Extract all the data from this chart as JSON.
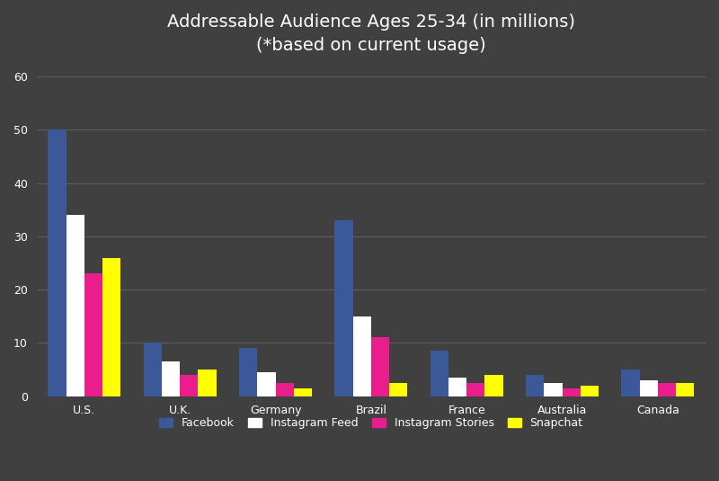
{
  "title_line1": "Addressable Audience Ages 25-34 (in millions)",
  "title_line2": "(*based on current usage)",
  "categories": [
    "U.S.",
    "U.K.",
    "Germany",
    "Brazil",
    "France",
    "Australia",
    "Canada"
  ],
  "series": {
    "Facebook": [
      50,
      10,
      9,
      33,
      8.5,
      4,
      5
    ],
    "Instagram Feed": [
      34,
      6.5,
      4.5,
      15,
      3.5,
      2.5,
      3
    ],
    "Instagram Stories": [
      23,
      4,
      2.5,
      11,
      2.5,
      1.5,
      2.5
    ],
    "Snapchat": [
      26,
      5,
      1.5,
      2.5,
      4,
      2,
      2.5
    ]
  },
  "colors": {
    "Facebook": "#3b5998",
    "Instagram Feed": "#ffffff",
    "Instagram Stories": "#e91e8c",
    "Snapchat": "#ffff00"
  },
  "ylim": [
    0,
    62
  ],
  "yticks": [
    0,
    10,
    20,
    30,
    40,
    50,
    60
  ],
  "background_color": "#404040",
  "grid_color": "#606060",
  "text_color": "#ffffff",
  "title_fontsize": 14,
  "legend_fontsize": 9,
  "tick_fontsize": 9,
  "bar_width": 0.19
}
